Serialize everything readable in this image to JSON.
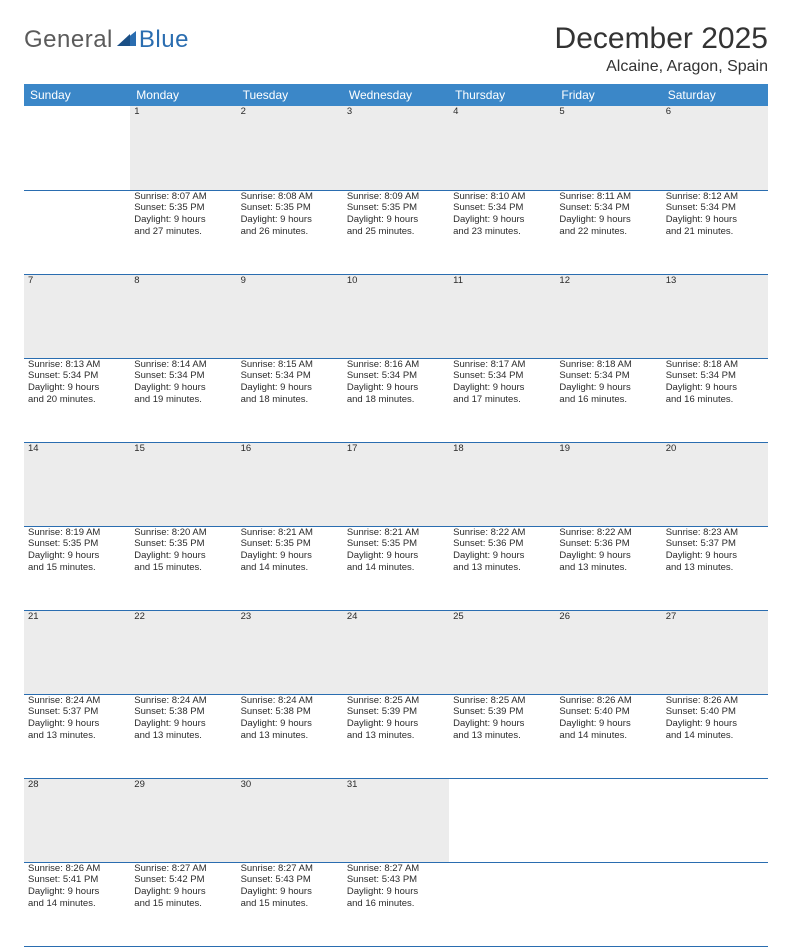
{
  "brand": {
    "part1": "General",
    "part2": "Blue"
  },
  "colors": {
    "header_bg": "#3b87c8",
    "header_text": "#ffffff",
    "rule": "#2a6db0",
    "daynum_bg": "#ececec",
    "text": "#2b2b2b",
    "logo_gray": "#5b5b5b",
    "logo_blue": "#2a6db0",
    "page_bg": "#ffffff"
  },
  "title": "December 2025",
  "location": "Alcaine, Aragon, Spain",
  "weekdays": [
    "Sunday",
    "Monday",
    "Tuesday",
    "Wednesday",
    "Thursday",
    "Friday",
    "Saturday"
  ],
  "weeks": [
    {
      "nums": [
        "",
        "1",
        "2",
        "3",
        "4",
        "5",
        "6"
      ],
      "cells": [
        {
          "empty": true
        },
        {
          "sunrise": "Sunrise: 8:07 AM",
          "sunset": "Sunset: 5:35 PM",
          "day1": "Daylight: 9 hours",
          "day2": "and 27 minutes."
        },
        {
          "sunrise": "Sunrise: 8:08 AM",
          "sunset": "Sunset: 5:35 PM",
          "day1": "Daylight: 9 hours",
          "day2": "and 26 minutes."
        },
        {
          "sunrise": "Sunrise: 8:09 AM",
          "sunset": "Sunset: 5:35 PM",
          "day1": "Daylight: 9 hours",
          "day2": "and 25 minutes."
        },
        {
          "sunrise": "Sunrise: 8:10 AM",
          "sunset": "Sunset: 5:34 PM",
          "day1": "Daylight: 9 hours",
          "day2": "and 23 minutes."
        },
        {
          "sunrise": "Sunrise: 8:11 AM",
          "sunset": "Sunset: 5:34 PM",
          "day1": "Daylight: 9 hours",
          "day2": "and 22 minutes."
        },
        {
          "sunrise": "Sunrise: 8:12 AM",
          "sunset": "Sunset: 5:34 PM",
          "day1": "Daylight: 9 hours",
          "day2": "and 21 minutes."
        }
      ]
    },
    {
      "nums": [
        "7",
        "8",
        "9",
        "10",
        "11",
        "12",
        "13"
      ],
      "cells": [
        {
          "sunrise": "Sunrise: 8:13 AM",
          "sunset": "Sunset: 5:34 PM",
          "day1": "Daylight: 9 hours",
          "day2": "and 20 minutes."
        },
        {
          "sunrise": "Sunrise: 8:14 AM",
          "sunset": "Sunset: 5:34 PM",
          "day1": "Daylight: 9 hours",
          "day2": "and 19 minutes."
        },
        {
          "sunrise": "Sunrise: 8:15 AM",
          "sunset": "Sunset: 5:34 PM",
          "day1": "Daylight: 9 hours",
          "day2": "and 18 minutes."
        },
        {
          "sunrise": "Sunrise: 8:16 AM",
          "sunset": "Sunset: 5:34 PM",
          "day1": "Daylight: 9 hours",
          "day2": "and 18 minutes."
        },
        {
          "sunrise": "Sunrise: 8:17 AM",
          "sunset": "Sunset: 5:34 PM",
          "day1": "Daylight: 9 hours",
          "day2": "and 17 minutes."
        },
        {
          "sunrise": "Sunrise: 8:18 AM",
          "sunset": "Sunset: 5:34 PM",
          "day1": "Daylight: 9 hours",
          "day2": "and 16 minutes."
        },
        {
          "sunrise": "Sunrise: 8:18 AM",
          "sunset": "Sunset: 5:34 PM",
          "day1": "Daylight: 9 hours",
          "day2": "and 16 minutes."
        }
      ]
    },
    {
      "nums": [
        "14",
        "15",
        "16",
        "17",
        "18",
        "19",
        "20"
      ],
      "cells": [
        {
          "sunrise": "Sunrise: 8:19 AM",
          "sunset": "Sunset: 5:35 PM",
          "day1": "Daylight: 9 hours",
          "day2": "and 15 minutes."
        },
        {
          "sunrise": "Sunrise: 8:20 AM",
          "sunset": "Sunset: 5:35 PM",
          "day1": "Daylight: 9 hours",
          "day2": "and 15 minutes."
        },
        {
          "sunrise": "Sunrise: 8:21 AM",
          "sunset": "Sunset: 5:35 PM",
          "day1": "Daylight: 9 hours",
          "day2": "and 14 minutes."
        },
        {
          "sunrise": "Sunrise: 8:21 AM",
          "sunset": "Sunset: 5:35 PM",
          "day1": "Daylight: 9 hours",
          "day2": "and 14 minutes."
        },
        {
          "sunrise": "Sunrise: 8:22 AM",
          "sunset": "Sunset: 5:36 PM",
          "day1": "Daylight: 9 hours",
          "day2": "and 13 minutes."
        },
        {
          "sunrise": "Sunrise: 8:22 AM",
          "sunset": "Sunset: 5:36 PM",
          "day1": "Daylight: 9 hours",
          "day2": "and 13 minutes."
        },
        {
          "sunrise": "Sunrise: 8:23 AM",
          "sunset": "Sunset: 5:37 PM",
          "day1": "Daylight: 9 hours",
          "day2": "and 13 minutes."
        }
      ]
    },
    {
      "nums": [
        "21",
        "22",
        "23",
        "24",
        "25",
        "26",
        "27"
      ],
      "cells": [
        {
          "sunrise": "Sunrise: 8:24 AM",
          "sunset": "Sunset: 5:37 PM",
          "day1": "Daylight: 9 hours",
          "day2": "and 13 minutes."
        },
        {
          "sunrise": "Sunrise: 8:24 AM",
          "sunset": "Sunset: 5:38 PM",
          "day1": "Daylight: 9 hours",
          "day2": "and 13 minutes."
        },
        {
          "sunrise": "Sunrise: 8:24 AM",
          "sunset": "Sunset: 5:38 PM",
          "day1": "Daylight: 9 hours",
          "day2": "and 13 minutes."
        },
        {
          "sunrise": "Sunrise: 8:25 AM",
          "sunset": "Sunset: 5:39 PM",
          "day1": "Daylight: 9 hours",
          "day2": "and 13 minutes."
        },
        {
          "sunrise": "Sunrise: 8:25 AM",
          "sunset": "Sunset: 5:39 PM",
          "day1": "Daylight: 9 hours",
          "day2": "and 13 minutes."
        },
        {
          "sunrise": "Sunrise: 8:26 AM",
          "sunset": "Sunset: 5:40 PM",
          "day1": "Daylight: 9 hours",
          "day2": "and 14 minutes."
        },
        {
          "sunrise": "Sunrise: 8:26 AM",
          "sunset": "Sunset: 5:40 PM",
          "day1": "Daylight: 9 hours",
          "day2": "and 14 minutes."
        }
      ]
    },
    {
      "nums": [
        "28",
        "29",
        "30",
        "31",
        "",
        "",
        ""
      ],
      "cells": [
        {
          "sunrise": "Sunrise: 8:26 AM",
          "sunset": "Sunset: 5:41 PM",
          "day1": "Daylight: 9 hours",
          "day2": "and 14 minutes."
        },
        {
          "sunrise": "Sunrise: 8:27 AM",
          "sunset": "Sunset: 5:42 PM",
          "day1": "Daylight: 9 hours",
          "day2": "and 15 minutes."
        },
        {
          "sunrise": "Sunrise: 8:27 AM",
          "sunset": "Sunset: 5:43 PM",
          "day1": "Daylight: 9 hours",
          "day2": "and 15 minutes."
        },
        {
          "sunrise": "Sunrise: 8:27 AM",
          "sunset": "Sunset: 5:43 PM",
          "day1": "Daylight: 9 hours",
          "day2": "and 16 minutes."
        },
        {
          "empty": true
        },
        {
          "empty": true
        },
        {
          "empty": true
        }
      ]
    }
  ]
}
